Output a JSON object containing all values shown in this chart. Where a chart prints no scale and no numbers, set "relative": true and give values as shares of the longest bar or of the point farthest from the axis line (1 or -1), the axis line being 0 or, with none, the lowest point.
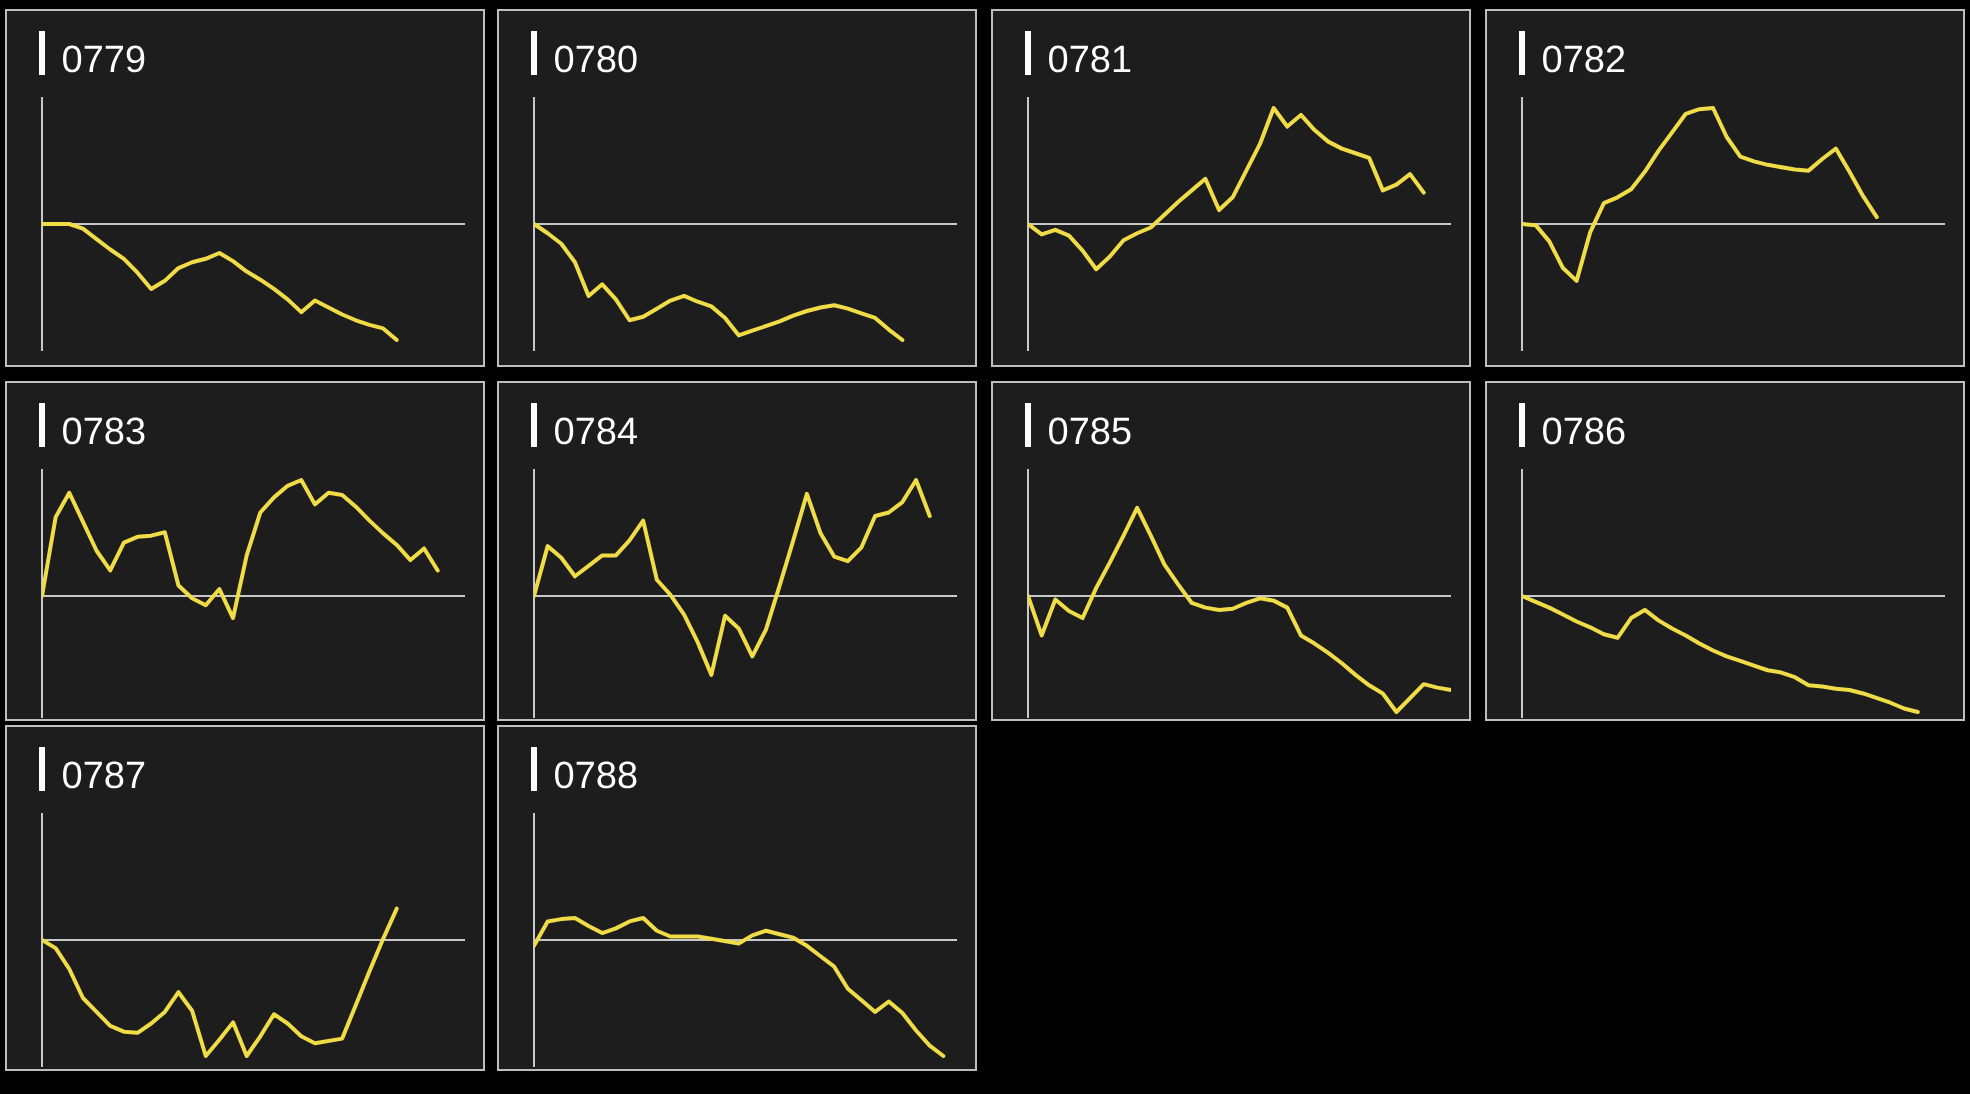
{
  "chart_data": [
    {
      "type": "line",
      "title": "0779",
      "color": "#f0dc46",
      "relative": true,
      "categories": [
        null,
        null,
        null,
        null,
        null,
        null,
        null,
        null,
        null,
        null,
        null,
        null,
        null,
        null,
        null,
        null,
        null,
        null,
        null,
        null,
        null,
        null,
        null,
        null,
        null,
        null,
        null,
        null,
        null,
        null,
        null,
        null
      ],
      "values": [
        0,
        0,
        0,
        -0.04,
        -0.13,
        -0.22,
        -0.3,
        -0.42,
        -0.56,
        -0.49,
        -0.38,
        -0.33,
        -0.3,
        -0.25,
        -0.32,
        -0.41,
        -0.48,
        -0.56,
        -0.65,
        -0.76,
        -0.66,
        -0.72,
        -0.78,
        -0.83,
        -0.87,
        -0.9,
        -1.0,
        null,
        null,
        null,
        null,
        null
      ]
    },
    {
      "type": "line",
      "title": "0780",
      "color": "#f0dc46",
      "relative": true,
      "categories": [
        null,
        null,
        null,
        null,
        null,
        null,
        null,
        null,
        null,
        null,
        null,
        null,
        null,
        null,
        null,
        null,
        null,
        null,
        null,
        null,
        null,
        null,
        null,
        null,
        null,
        null,
        null,
        null,
        null,
        null,
        null,
        null
      ],
      "values": [
        0,
        -0.08,
        -0.17,
        -0.33,
        -0.62,
        -0.52,
        -0.65,
        -0.83,
        -0.8,
        -0.73,
        -0.66,
        -0.62,
        -0.67,
        -0.71,
        -0.81,
        -0.96,
        -0.92,
        -0.88,
        -0.84,
        -0.79,
        -0.75,
        -0.72,
        -0.7,
        -0.73,
        -0.77,
        -0.81,
        -0.91,
        -1.0,
        null,
        null,
        null,
        null
      ]
    },
    {
      "type": "line",
      "title": "0781",
      "color": "#f0dc46",
      "relative": true,
      "categories": [
        null,
        null,
        null,
        null,
        null,
        null,
        null,
        null,
        null,
        null,
        null,
        null,
        null,
        null,
        null,
        null,
        null,
        null,
        null,
        null,
        null,
        null,
        null,
        null,
        null,
        null,
        null,
        null,
        null,
        null,
        null,
        null
      ],
      "values": [
        0,
        -0.09,
        -0.05,
        -0.1,
        -0.23,
        -0.39,
        -0.28,
        -0.14,
        -0.08,
        -0.03,
        0.08,
        0.19,
        0.29,
        0.39,
        0.12,
        0.23,
        0.46,
        0.69,
        1.0,
        0.84,
        0.94,
        0.81,
        0.71,
        0.65,
        0.61,
        0.57,
        0.29,
        0.34,
        0.43,
        0.27,
        null,
        null
      ]
    },
    {
      "type": "line",
      "title": "0782",
      "color": "#f0dc46",
      "relative": true,
      "categories": [
        null,
        null,
        null,
        null,
        null,
        null,
        null,
        null,
        null,
        null,
        null,
        null,
        null,
        null,
        null,
        null,
        null,
        null,
        null,
        null,
        null,
        null,
        null,
        null,
        null,
        null,
        null,
        null,
        null,
        null,
        null,
        null
      ],
      "values": [
        0,
        -0.01,
        -0.15,
        -0.38,
        -0.49,
        -0.07,
        0.18,
        0.23,
        0.3,
        0.45,
        0.63,
        0.79,
        0.95,
        0.99,
        1.0,
        0.75,
        0.58,
        0.54,
        0.51,
        0.49,
        0.47,
        0.46,
        0.56,
        0.65,
        0.45,
        0.24,
        0.06,
        null,
        null,
        null,
        null,
        null
      ]
    },
    {
      "type": "line",
      "title": "0783",
      "color": "#f0dc46",
      "relative": true,
      "categories": [
        null,
        null,
        null,
        null,
        null,
        null,
        null,
        null,
        null,
        null,
        null,
        null,
        null,
        null,
        null,
        null,
        null,
        null,
        null,
        null,
        null,
        null,
        null,
        null,
        null,
        null,
        null,
        null,
        null,
        null,
        null,
        null
      ],
      "values": [
        0,
        0.68,
        0.89,
        0.64,
        0.39,
        0.22,
        0.46,
        0.51,
        0.52,
        0.55,
        0.09,
        -0.02,
        -0.08,
        0.06,
        -0.19,
        0.35,
        0.72,
        0.85,
        0.95,
        1.0,
        0.79,
        0.89,
        0.87,
        0.77,
        0.65,
        0.54,
        0.44,
        0.31,
        0.41,
        0.22,
        null,
        null
      ]
    },
    {
      "type": "line",
      "title": "0784",
      "color": "#f0dc46",
      "relative": true,
      "categories": [
        null,
        null,
        null,
        null,
        null,
        null,
        null,
        null,
        null,
        null,
        null,
        null,
        null,
        null,
        null,
        null,
        null,
        null,
        null,
        null,
        null,
        null,
        null,
        null,
        null,
        null,
        null,
        null,
        null,
        null,
        null,
        null
      ],
      "values": [
        0,
        0.43,
        0.33,
        0.17,
        0.26,
        0.35,
        0.35,
        0.48,
        0.65,
        0.14,
        0.01,
        -0.16,
        -0.4,
        -0.68,
        -0.17,
        -0.28,
        -0.52,
        -0.29,
        0.09,
        0.48,
        0.88,
        0.54,
        0.34,
        0.3,
        0.42,
        0.69,
        0.72,
        0.81,
        1.0,
        0.69,
        null,
        null
      ]
    },
    {
      "type": "line",
      "title": "0785",
      "color": "#f0dc46",
      "relative": true,
      "categories": [
        null,
        null,
        null,
        null,
        null,
        null,
        null,
        null,
        null,
        null,
        null,
        null,
        null,
        null,
        null,
        null,
        null,
        null,
        null,
        null,
        null,
        null,
        null,
        null,
        null,
        null,
        null,
        null,
        null,
        null,
        null,
        null
      ],
      "values": [
        0,
        -0.34,
        -0.03,
        -0.13,
        -0.19,
        0.07,
        0.29,
        0.52,
        0.76,
        0.52,
        0.27,
        0.1,
        -0.06,
        -0.1,
        -0.12,
        -0.11,
        -0.06,
        -0.02,
        -0.04,
        -0.1,
        -0.34,
        -0.41,
        -0.49,
        -0.58,
        -0.68,
        -0.77,
        -0.84,
        -1.0,
        -0.88,
        -0.76,
        -0.79,
        -0.81
      ]
    },
    {
      "type": "line",
      "title": "0786",
      "color": "#f0dc46",
      "relative": true,
      "categories": [
        null,
        null,
        null,
        null,
        null,
        null,
        null,
        null,
        null,
        null,
        null,
        null,
        null,
        null,
        null,
        null,
        null,
        null,
        null,
        null,
        null,
        null,
        null,
        null,
        null,
        null,
        null,
        null,
        null,
        null,
        null,
        null
      ],
      "values": [
        0,
        -0.05,
        -0.1,
        -0.16,
        -0.22,
        -0.27,
        -0.33,
        -0.36,
        -0.19,
        -0.12,
        -0.21,
        -0.28,
        -0.34,
        -0.41,
        -0.47,
        -0.52,
        -0.56,
        -0.6,
        -0.64,
        -0.66,
        -0.7,
        -0.77,
        -0.78,
        -0.8,
        -0.81,
        -0.84,
        -0.88,
        -0.92,
        -0.97,
        -1.0,
        null,
        null
      ]
    },
    {
      "type": "line",
      "title": "0787",
      "color": "#f0dc46",
      "relative": true,
      "categories": [
        null,
        null,
        null,
        null,
        null,
        null,
        null,
        null,
        null,
        null,
        null,
        null,
        null,
        null,
        null,
        null,
        null,
        null,
        null,
        null,
        null,
        null,
        null,
        null,
        null,
        null,
        null,
        null,
        null,
        null,
        null,
        null
      ],
      "values": [
        0,
        -0.07,
        -0.25,
        -0.5,
        -0.62,
        -0.74,
        -0.79,
        -0.8,
        -0.72,
        -0.62,
        -0.45,
        -0.61,
        -1.0,
        -0.86,
        -0.71,
        -1.0,
        -0.83,
        -0.64,
        -0.72,
        -0.83,
        -0.89,
        -0.87,
        -0.85,
        -0.56,
        -0.27,
        0.01,
        0.27,
        null,
        null,
        null,
        null,
        null
      ]
    },
    {
      "type": "line",
      "title": "0788",
      "color": "#f0dc46",
      "relative": true,
      "categories": [
        null,
        null,
        null,
        null,
        null,
        null,
        null,
        null,
        null,
        null,
        null,
        null,
        null,
        null,
        null,
        null,
        null,
        null,
        null,
        null,
        null,
        null,
        null,
        null,
        null,
        null,
        null,
        null,
        null,
        null,
        null,
        null
      ],
      "values": [
        -0.05,
        0.16,
        0.18,
        0.19,
        0.12,
        0.06,
        0.1,
        0.16,
        0.19,
        0.08,
        0.03,
        0.03,
        0.03,
        0.01,
        -0.01,
        -0.03,
        0.04,
        0.08,
        0.05,
        0.02,
        -0.05,
        -0.14,
        -0.23,
        -0.42,
        -0.52,
        -0.62,
        -0.53,
        -0.63,
        -0.78,
        -0.91,
        -1.0,
        null
      ]
    }
  ]
}
